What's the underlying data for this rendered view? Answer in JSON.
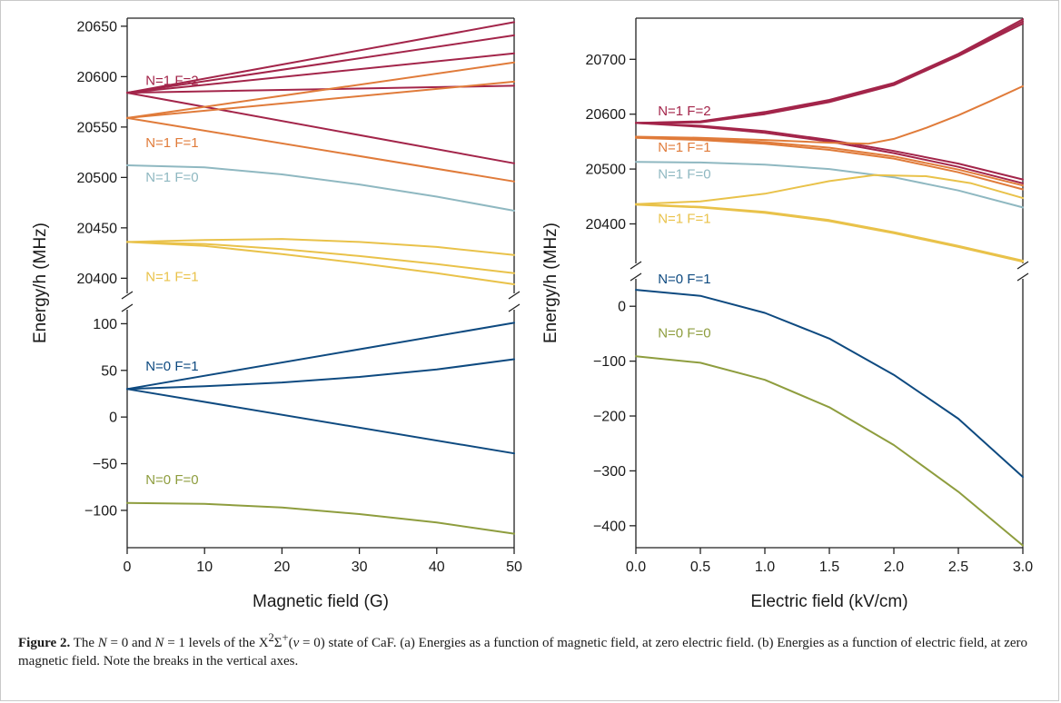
{
  "caption": {
    "label": "Figure 2.",
    "part1": " The ",
    "n0": "N",
    "eq0": " = 0 and ",
    "n1": "N",
    "eq1": " = 1 levels of the X",
    "sup2": "2",
    "sigma": "Σ",
    "supplus": "+",
    "paren_open": "(",
    "nu": "v",
    "paren_rest": " = 0) state of CaF. (a) Energies as a function of magnetic field, at zero electric field. (b) Energies as a function of electric field, at zero magnetic field. Note the breaks in the vertical axes."
  },
  "colors": {
    "N1F2": "#a3254a",
    "N1F1_upper": "#e07b3a",
    "N1F0": "#8fb8c1",
    "N1F1_lower": "#e9c24a",
    "N0F1": "#0e4a80",
    "N0F0": "#8e9d3e"
  },
  "chart_data": [
    {
      "type": "line",
      "panel": "a",
      "xlabel": "Magnetic field (G)",
      "ylabel": "Energy/h (MHz)",
      "xlim": [
        0,
        50
      ],
      "x_ticks": [
        "0",
        "10",
        "20",
        "30",
        "40",
        "50"
      ],
      "broken_y_axis": true,
      "upper_ylim": [
        20385,
        20658
      ],
      "upper_y_ticks": [
        20400,
        20450,
        20500,
        20550,
        20600,
        20650
      ],
      "lower_ylim": [
        -140,
        115
      ],
      "lower_y_ticks": [
        -100,
        -50,
        0,
        50,
        100
      ],
      "grid": false,
      "level_labels": [
        {
          "text": "N=1 F=2",
          "color_key": "N1F2",
          "x": 1.2,
          "y": 20592,
          "section": "upper"
        },
        {
          "text": "N=1 F=1",
          "color_key": "N1F1_upper",
          "x": 1.2,
          "y": 20530,
          "section": "upper"
        },
        {
          "text": "N=1 F=0",
          "color_key": "N1F0",
          "x": 1.2,
          "y": 20496,
          "section": "upper"
        },
        {
          "text": "N=1 F=1",
          "color_key": "N1F1_lower",
          "x": 1.2,
          "y": 20397,
          "section": "upper"
        },
        {
          "text": "N=0 F=1",
          "color_key": "N0F1",
          "x": 1.2,
          "y": 50,
          "section": "lower"
        },
        {
          "text": "N=0 F=0",
          "color_key": "N0F0",
          "x": 1.2,
          "y": -72,
          "section": "lower"
        }
      ],
      "series": [
        {
          "color_key": "N1F2",
          "section": "upper",
          "x": [
            0,
            50
          ],
          "y": [
            20584,
            20654
          ]
        },
        {
          "color_key": "N1F2",
          "section": "upper",
          "x": [
            0,
            50
          ],
          "y": [
            20584,
            20641
          ]
        },
        {
          "color_key": "N1F2",
          "section": "upper",
          "x": [
            0,
            50
          ],
          "y": [
            20584,
            20623
          ]
        },
        {
          "color_key": "N1F2",
          "section": "upper",
          "x": [
            0,
            50
          ],
          "y": [
            20584,
            20591
          ]
        },
        {
          "color_key": "N1F2",
          "section": "upper",
          "x": [
            0,
            50
          ],
          "y": [
            20584,
            20514
          ]
        },
        {
          "color_key": "N1F1_upper",
          "section": "upper",
          "x": [
            0,
            50
          ],
          "y": [
            20559,
            20614
          ]
        },
        {
          "color_key": "N1F1_upper",
          "section": "upper",
          "x": [
            0,
            50
          ],
          "y": [
            20559,
            20595
          ]
        },
        {
          "color_key": "N1F1_upper",
          "section": "upper",
          "x": [
            0,
            50
          ],
          "y": [
            20559,
            20496
          ]
        },
        {
          "color_key": "N1F0",
          "section": "upper",
          "x": [
            0,
            10,
            20,
            30,
            40,
            50
          ],
          "y": [
            20512,
            20510,
            20503,
            20493,
            20481,
            20467
          ]
        },
        {
          "color_key": "N1F1_lower",
          "section": "upper",
          "x": [
            0,
            10,
            20,
            30,
            40,
            50
          ],
          "y": [
            20436,
            20438,
            20439,
            20436,
            20431,
            20423
          ]
        },
        {
          "color_key": "N1F1_lower",
          "section": "upper",
          "x": [
            0,
            10,
            20,
            30,
            40,
            50
          ],
          "y": [
            20436,
            20434,
            20429,
            20422,
            20414,
            20405
          ]
        },
        {
          "color_key": "N1F1_lower",
          "section": "upper",
          "x": [
            0,
            10,
            20,
            30,
            40,
            50
          ],
          "y": [
            20436,
            20432,
            20424,
            20415,
            20405,
            20394
          ]
        },
        {
          "color_key": "N0F1",
          "section": "lower",
          "x": [
            0,
            50
          ],
          "y": [
            30,
            101
          ]
        },
        {
          "color_key": "N0F1",
          "section": "lower",
          "x": [
            0,
            10,
            20,
            30,
            40,
            50
          ],
          "y": [
            30,
            33,
            37,
            43,
            51,
            62
          ]
        },
        {
          "color_key": "N0F1",
          "section": "lower",
          "x": [
            0,
            50
          ],
          "y": [
            30,
            -39
          ]
        },
        {
          "color_key": "N0F0",
          "section": "lower",
          "x": [
            0,
            10,
            20,
            30,
            40,
            50
          ],
          "y": [
            -92,
            -93,
            -97,
            -104,
            -113,
            -125
          ]
        }
      ]
    },
    {
      "type": "line",
      "panel": "b",
      "xlabel": "Electric field (kV/cm)",
      "ylabel": "Energy/h (MHz)",
      "xlim": [
        0,
        3
      ],
      "x_ticks": [
        "0.0",
        "0.5",
        "1.0",
        "1.5",
        "2.0",
        "2.5",
        "3.0"
      ],
      "broken_y_axis": true,
      "upper_ylim": [
        20328,
        20775
      ],
      "upper_y_ticks": [
        20400,
        20500,
        20600,
        20700
      ],
      "lower_ylim": [
        -440,
        50
      ],
      "lower_y_ticks": [
        -400,
        -300,
        -200,
        -100,
        0
      ],
      "grid": false,
      "level_labels": [
        {
          "text": "N=1 F=2",
          "color_key": "N1F2",
          "x": 0.1,
          "y": 20598,
          "section": "upper"
        },
        {
          "text": "N=1 F=1",
          "color_key": "N1F1_upper",
          "x": 0.1,
          "y": 20532,
          "section": "upper"
        },
        {
          "text": "N=1 F=0",
          "color_key": "N1F0",
          "x": 0.1,
          "y": 20483,
          "section": "upper"
        },
        {
          "text": "N=1 F=1",
          "color_key": "N1F1_lower",
          "x": 0.1,
          "y": 20402,
          "section": "upper"
        },
        {
          "text": "N=0 F=1",
          "color_key": "N0F1",
          "x": 0.1,
          "y": 42,
          "section": "lower"
        },
        {
          "text": "N=0 F=0",
          "color_key": "N0F0",
          "x": 0.1,
          "y": -57,
          "section": "lower"
        }
      ],
      "series": [
        {
          "color_key": "N1F2",
          "section": "upper",
          "x": [
            0,
            0.5,
            1.0,
            1.5,
            2.0,
            2.5,
            3.0
          ],
          "y": [
            20584,
            20587,
            20604,
            20626,
            20657,
            20710,
            20773
          ]
        },
        {
          "color_key": "N1F2",
          "section": "upper",
          "x": [
            0,
            0.5,
            1.0,
            1.5,
            2.0,
            2.5,
            3.0
          ],
          "y": [
            20584,
            20586,
            20602,
            20624,
            20655,
            20708,
            20769
          ]
        },
        {
          "color_key": "N1F2",
          "section": "upper",
          "x": [
            0,
            0.5,
            1.0,
            1.5,
            2.0,
            2.5,
            3.0
          ],
          "y": [
            20584,
            20585,
            20600,
            20622,
            20653,
            20706,
            20765
          ]
        },
        {
          "color_key": "N1F2",
          "section": "upper",
          "x": [
            0,
            0.5,
            1.0,
            1.5,
            2.0,
            2.5,
            3.0
          ],
          "y": [
            20584,
            20579,
            20569,
            20553,
            20533,
            20510,
            20481
          ]
        },
        {
          "color_key": "N1F2",
          "section": "upper",
          "x": [
            0,
            0.5,
            1.0,
            1.5,
            2.0,
            2.5,
            3.0
          ],
          "y": [
            20584,
            20577,
            20566,
            20550,
            20529,
            20504,
            20474
          ]
        },
        {
          "color_key": "N1F1_upper",
          "section": "upper",
          "x": [
            0,
            0.5,
            1.0,
            1.5,
            1.8,
            2.0,
            2.25,
            2.5,
            2.75,
            3.0
          ],
          "y": [
            20559,
            20557,
            20553,
            20548,
            20546,
            20555,
            20575,
            20598,
            20624,
            20651
          ]
        },
        {
          "color_key": "N1F1_upper",
          "section": "upper",
          "x": [
            0,
            0.5,
            1.0,
            1.5,
            2.0,
            2.5,
            3.0
          ],
          "y": [
            20558,
            20555,
            20549,
            20539,
            20523,
            20499,
            20470
          ]
        },
        {
          "color_key": "N1F1_upper",
          "section": "upper",
          "x": [
            0,
            0.5,
            1.0,
            1.5,
            2.0,
            2.5,
            3.0
          ],
          "y": [
            20557,
            20553,
            20546,
            20535,
            20519,
            20494,
            20463
          ]
        },
        {
          "color_key": "N1F0",
          "section": "upper",
          "x": [
            0,
            0.5,
            1.0,
            1.5,
            2.0,
            2.5,
            3.0
          ],
          "y": [
            20513,
            20512,
            20508,
            20500,
            20485,
            20461,
            20430
          ]
        },
        {
          "color_key": "N1F1_lower",
          "section": "upper",
          "x": [
            0,
            0.5,
            1.0,
            1.5,
            1.85,
            2.25,
            2.6,
            3.0
          ],
          "y": [
            20436,
            20441,
            20455,
            20478,
            20489,
            20487,
            20474,
            20447
          ]
        },
        {
          "color_key": "N1F1_lower",
          "section": "upper",
          "x": [
            0,
            0.5,
            1.0,
            1.5,
            2.0,
            2.5,
            3.0
          ],
          "y": [
            20436,
            20431,
            20422,
            20407,
            20385,
            20360,
            20333
          ]
        },
        {
          "color_key": "N1F1_lower",
          "section": "upper",
          "x": [
            0,
            0.5,
            1.0,
            1.5,
            2.0,
            2.5,
            3.0
          ],
          "y": [
            20435,
            20430,
            20420,
            20405,
            20383,
            20358,
            20331
          ]
        },
        {
          "color_key": "N0F1",
          "section": "lower",
          "x": [
            0,
            0.5,
            1.0,
            1.5,
            2.0,
            2.5,
            3.0
          ],
          "y": [
            30,
            19,
            -12,
            -59,
            -125,
            -205,
            -311
          ]
        },
        {
          "color_key": "N0F0",
          "section": "lower",
          "x": [
            0,
            0.5,
            1.0,
            1.5,
            2.0,
            2.5,
            3.0
          ],
          "y": [
            -91,
            -103,
            -134,
            -184,
            -253,
            -338,
            -436
          ]
        }
      ]
    }
  ]
}
